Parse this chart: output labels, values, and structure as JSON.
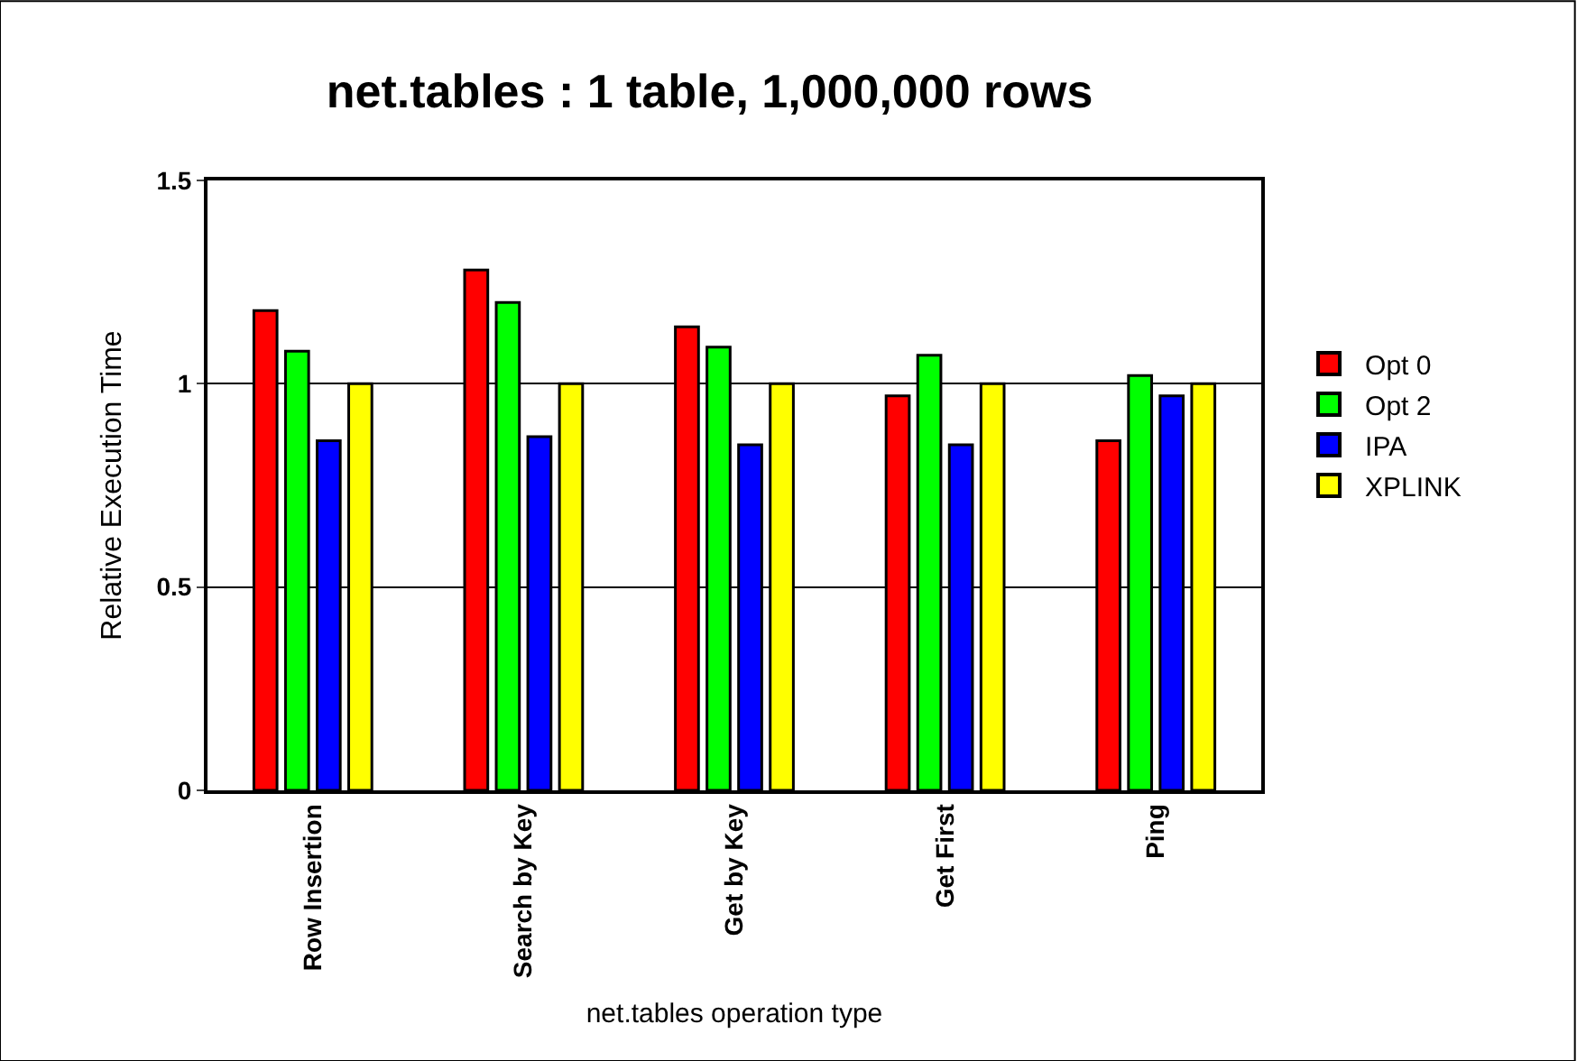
{
  "chart_data": {
    "type": "bar",
    "title": "net.tables : 1 table, 1,000,000 rows",
    "xlabel": "net.tables operation type",
    "ylabel": "Relative Execution Time",
    "categories": [
      "Row Insertion",
      "Search by Key",
      "Get by Key",
      "Get First",
      "Ping"
    ],
    "series": [
      {
        "name": "Opt 0",
        "color": "#ff0000",
        "values": [
          1.18,
          1.28,
          1.14,
          0.97,
          0.86
        ]
      },
      {
        "name": "Opt 2",
        "color": "#00ff00",
        "values": [
          1.08,
          1.2,
          1.09,
          1.07,
          1.02
        ]
      },
      {
        "name": "IPA",
        "color": "#0000ff",
        "values": [
          0.86,
          0.87,
          0.85,
          0.85,
          0.97
        ]
      },
      {
        "name": "XPLINK",
        "color": "#ffff00",
        "values": [
          1,
          1,
          1,
          1,
          1
        ]
      }
    ],
    "ylim": [
      0,
      1.5
    ],
    "yticks": [
      0,
      0.5,
      1,
      1.5
    ],
    "grid": "y",
    "legend": "right"
  }
}
